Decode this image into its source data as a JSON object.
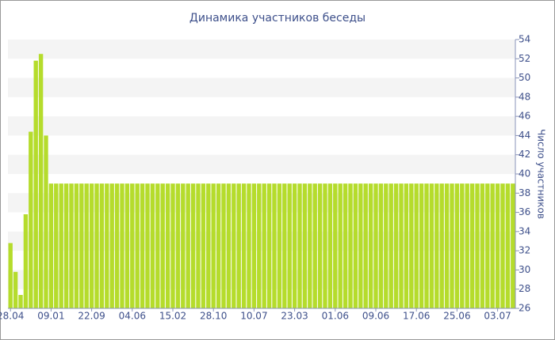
{
  "chart_data": {
    "type": "bar",
    "title": "Динамика участников беседы",
    "y_axis_label": "Число участников",
    "categories": [
      "28.04",
      null,
      null,
      null,
      null,
      null,
      null,
      null,
      "09.01",
      null,
      null,
      null,
      null,
      null,
      null,
      null,
      "22.09",
      null,
      null,
      null,
      null,
      null,
      null,
      null,
      "04.06",
      null,
      null,
      null,
      null,
      null,
      null,
      null,
      "15.02",
      null,
      null,
      null,
      null,
      null,
      null,
      null,
      "28.10",
      null,
      null,
      null,
      null,
      null,
      null,
      null,
      "10.07",
      null,
      null,
      null,
      null,
      null,
      null,
      null,
      "23.03",
      null,
      null,
      null,
      null,
      null,
      null,
      null,
      "01.06",
      null,
      null,
      null,
      null,
      null,
      null,
      null,
      "09.06",
      null,
      null,
      null,
      null,
      null,
      null,
      null,
      "17.06",
      null,
      null,
      null,
      null,
      null,
      null,
      null,
      "25.06",
      null,
      null,
      null,
      null,
      null,
      null,
      null,
      "03.07",
      null,
      null,
      null
    ],
    "values": [
      32.8,
      29.8,
      27.4,
      35.8,
      44.4,
      51.8,
      52.5,
      44.0,
      39,
      39,
      39,
      39,
      39,
      39,
      39,
      39,
      39,
      39,
      39,
      39,
      39,
      39,
      39,
      39,
      39,
      39,
      39,
      39,
      39,
      39,
      39,
      39,
      39,
      39,
      39,
      39,
      39,
      39,
      39,
      39,
      39,
      39,
      39,
      39,
      39,
      39,
      39,
      39,
      39,
      39,
      39,
      39,
      39,
      39,
      39,
      39,
      39,
      39,
      39,
      39,
      39,
      39,
      39,
      39,
      39,
      39,
      39,
      39,
      39,
      39,
      39,
      39,
      39,
      39,
      39,
      39,
      39,
      39,
      39,
      39,
      39,
      39,
      39,
      39,
      39,
      39,
      39,
      39,
      39,
      39,
      39,
      39,
      39,
      39,
      39,
      39,
      39,
      39,
      39,
      39
    ],
    "color": "#b5dc2c",
    "ylim": [
      26,
      54
    ],
    "yticks": [
      26,
      28,
      30,
      32,
      34,
      36,
      38,
      40,
      42,
      44,
      46,
      48,
      50,
      52,
      54
    ],
    "grid": true
  }
}
